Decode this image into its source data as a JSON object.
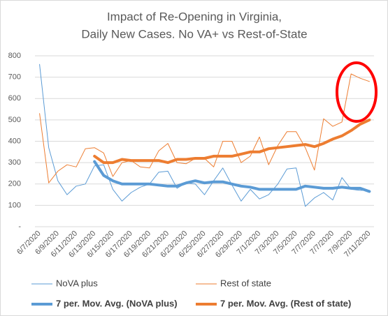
{
  "chart_data": {
    "type": "line",
    "title": [
      "Impact of Re-Opening in Virginia,",
      "Daily New Cases. No VA+ vs Rest-of-State"
    ],
    "categories": [
      "6/7/2020",
      null,
      "6/9/2020",
      null,
      "6/11/2020",
      null,
      "6/13/2020",
      null,
      "6/15/2020",
      null,
      "6/17/2020",
      null,
      "6/19/2020",
      null,
      "6/21/2020",
      null,
      "6/23/2020",
      null,
      "6/25/2020",
      null,
      "6/27/2020",
      null,
      "6/29/2020",
      null,
      "7/1/2020",
      null,
      "7/3/2020",
      null,
      "7/5/2020",
      null,
      "7/7/2020",
      null,
      "7/7/2020",
      null,
      "7/9/2020",
      null,
      "7/11/2020"
    ],
    "series": [
      {
        "name": "NoVA plus",
        "color": "#5b9bd5",
        "width": 1,
        "values": [
          760,
          370,
          215,
          150,
          190,
          200,
          285,
          290,
          175,
          120,
          160,
          185,
          200,
          255,
          260,
          180,
          205,
          200,
          150,
          215,
          275,
          195,
          120,
          175,
          130,
          150,
          200,
          270,
          275,
          95,
          135,
          160,
          125,
          230,
          175,
          170,
          170
        ]
      },
      {
        "name": "Rest of state",
        "color": "#ed7d31",
        "width": 1,
        "values": [
          530,
          205,
          260,
          290,
          280,
          365,
          370,
          345,
          235,
          300,
          310,
          280,
          275,
          355,
          390,
          300,
          295,
          320,
          320,
          280,
          400,
          400,
          300,
          330,
          420,
          290,
          380,
          445,
          445,
          370,
          265,
          505,
          470,
          490,
          715,
          695,
          680
        ]
      },
      {
        "name": "7 per. Mov. Avg. (NoVA plus)",
        "color": "#5b9bd5",
        "width": 4,
        "values": [
          null,
          null,
          null,
          null,
          null,
          null,
          305,
          240,
          215,
          200,
          200,
          200,
          200,
          195,
          190,
          190,
          205,
          215,
          205,
          210,
          210,
          200,
          190,
          185,
          175,
          175,
          175,
          175,
          175,
          190,
          185,
          180,
          180,
          185,
          180,
          180,
          165
        ]
      },
      {
        "name": "7 per. Mov. Avg. (Rest of state)",
        "color": "#ed7d31",
        "width": 4,
        "values": [
          null,
          null,
          null,
          null,
          null,
          null,
          330,
          300,
          300,
          315,
          310,
          310,
          310,
          310,
          300,
          315,
          315,
          320,
          320,
          330,
          330,
          330,
          340,
          350,
          350,
          365,
          370,
          375,
          380,
          385,
          375,
          390,
          410,
          425,
          450,
          480,
          500
        ]
      }
    ],
    "ylim": [
      0,
      800
    ],
    "yticks": [
      {
        "value": 0,
        "label": "-"
      },
      100,
      200,
      300,
      400,
      500,
      600,
      700,
      800
    ],
    "grid": true,
    "legend": "bottom"
  }
}
